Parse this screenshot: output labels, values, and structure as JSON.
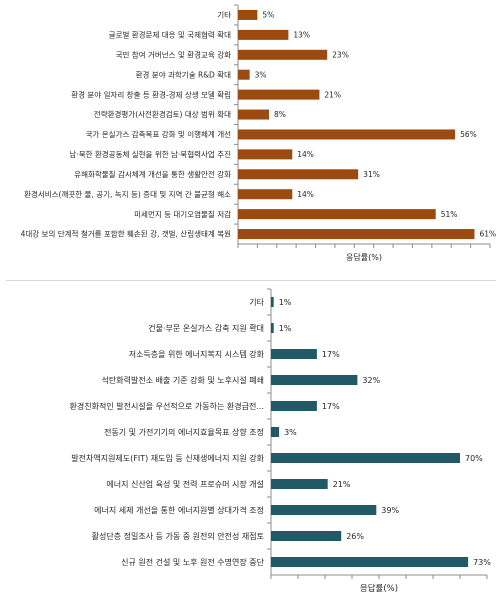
{
  "chart_data": [
    {
      "type": "bar",
      "orientation": "horizontal",
      "categories": [
        "기타",
        "글로벌 환경문제 대응 및 국제협력 확대",
        "국민 참여 거버넌스 및 환경교육 강화",
        "환경 분야 과학기술 R&D 확대",
        "환경 분야 일자리 창출 등 환경-경제 상생 모델 확립",
        "전략환경평가(사전환경검토) 대상 범위 확대",
        "국가 온실가스 감축목표 강화 및 이행체계 개선",
        "남·북한 환경공동체 실현을 위한 남·북협력사업 추진",
        "유해화학물질 감시체계 개선을 통한 생활안전 강화",
        "환경서비스(깨끗한 물, 공기, 녹지 등) 증대 및 지역 간 불균형 해소",
        "미세먼지 등 대기오염물질 저감",
        "4대강 보의 단계적 철거를 포함한 훼손된 강, 갯벌, 산림생태계 복원"
      ],
      "values": [
        5,
        13,
        23,
        3,
        21,
        8,
        56,
        14,
        31,
        14,
        51,
        61
      ],
      "value_labels": [
        "5%",
        "13%",
        "23%",
        "3%",
        "21%",
        "8%",
        "56%",
        "14%",
        "31%",
        "14%",
        "51%",
        "61%"
      ],
      "xlabel": "응답률(%)",
      "xlim": [
        0,
        65
      ],
      "bar_color": "#9c4a10",
      "grid": false
    },
    {
      "type": "bar",
      "orientation": "horizontal",
      "categories": [
        "기타",
        "건물·부문 온실가스 감축 지원 확대",
        "저소득층을 위한 에너지복지 시스템 강화",
        "석탄화력발전소 배출 기준 강화 및 노후시설 폐쇄",
        "환경친화적인 발전시설을 우선적으로 가동하는 환경급전...",
        "전동기 및 가전기기의 에너지효율목표 상향 조정",
        "발전차액지원제도(FIT) 재도입 등 신재생에너지 지원 강화",
        "에너지 신산업 육성 및 전력 프로슈머 시장 개설",
        "에너지 세제 개선을 통한 에너지원별 상대가격 조정",
        "활성단층 정밀조사 등 가동 중 원전의 안전성 재점토",
        "신규 원전 건설 및 노후 원전 수명연장 중단"
      ],
      "values": [
        1,
        1,
        17,
        32,
        17,
        3,
        70,
        21,
        39,
        26,
        73
      ],
      "value_labels": [
        "1%",
        "1%",
        "17%",
        "32%",
        "17%",
        "3%",
        "70%",
        "21%",
        "39%",
        "26%",
        "73%"
      ],
      "xlabel": "응답률(%)",
      "xlim": [
        0,
        80
      ],
      "bar_color": "#215a66",
      "grid": false
    }
  ]
}
